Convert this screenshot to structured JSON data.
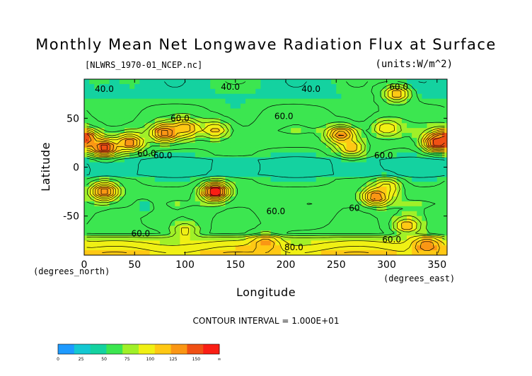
{
  "chart_data": {
    "type": "heatmap",
    "title": "Monthly Mean Net Longwave Radiation Flux at Surface",
    "file_label": "[NLWRS_1970-01_NCEP.nc]",
    "units_label": "(units:W/m^2)",
    "xlabel": "Longitude",
    "ylabel": "Latitude",
    "x_unit_label": "(degrees_east)",
    "y_unit_label": "(degrees_north)",
    "xlim": [
      0,
      360
    ],
    "ylim": [
      -90,
      90
    ],
    "x_ticks": [
      0,
      50,
      100,
      150,
      200,
      250,
      300,
      350
    ],
    "y_ticks": [
      -50,
      0,
      50
    ],
    "contour_interval_text": "CONTOUR INTERVAL = 1.000E+01",
    "contour_labels": [
      {
        "text": "40.0",
        "x": 20,
        "y": 80
      },
      {
        "text": "40.0",
        "x": 145,
        "y": 82
      },
      {
        "text": "40.0",
        "x": 225,
        "y": 80
      },
      {
        "text": "60.0",
        "x": 312,
        "y": 82
      },
      {
        "text": "60.0",
        "x": 95,
        "y": 50
      },
      {
        "text": "60.0",
        "x": 198,
        "y": 52
      },
      {
        "text": "60.0",
        "x": 62,
        "y": 14
      },
      {
        "text": "60.0",
        "x": 78,
        "y": 12
      },
      {
        "text": "60.0",
        "x": 297,
        "y": 12
      },
      {
        "text": "60.0",
        "x": 190,
        "y": -45
      },
      {
        "text": "60",
        "x": 268,
        "y": -42
      },
      {
        "text": "60.0",
        "x": 56,
        "y": -68
      },
      {
        "text": "60.0",
        "x": 305,
        "y": -74
      },
      {
        "text": "80.0",
        "x": 208,
        "y": -82
      }
    ],
    "colorbar": {
      "ticks": [
        "0",
        "25",
        "50",
        "75",
        "100",
        "125",
        "150",
        "∞"
      ],
      "colors": [
        "#1e9aff",
        "#14c8d2",
        "#14d2a0",
        "#3ce650",
        "#a0f028",
        "#f0f014",
        "#ffc814",
        "#fa9614",
        "#f05014",
        "#fa1e14"
      ]
    },
    "features": [
      {
        "lon": 0,
        "lat": 30,
        "value": 130
      },
      {
        "lon": 20,
        "lat": 20,
        "value": 140
      },
      {
        "lon": 45,
        "lat": 25,
        "value": 120
      },
      {
        "lon": 80,
        "lat": 35,
        "value": 130
      },
      {
        "lon": 100,
        "lat": 40,
        "value": 110
      },
      {
        "lon": 130,
        "lat": 38,
        "value": 95
      },
      {
        "lon": 255,
        "lat": 33,
        "value": 125
      },
      {
        "lon": 265,
        "lat": 20,
        "value": 100
      },
      {
        "lon": 300,
        "lat": 40,
        "value": 90
      },
      {
        "lon": 350,
        "lat": 25,
        "value": 140
      },
      {
        "lon": 20,
        "lat": -25,
        "value": 130
      },
      {
        "lon": 130,
        "lat": -25,
        "value": 150
      },
      {
        "lon": 290,
        "lat": -30,
        "value": 130
      },
      {
        "lon": 300,
        "lat": -20,
        "value": 95
      },
      {
        "lon": 320,
        "lat": -60,
        "value": 100
      },
      {
        "lon": 100,
        "lat": -65,
        "value": 85
      },
      {
        "lon": 180,
        "lat": -78,
        "value": 110
      },
      {
        "lon": 340,
        "lat": -80,
        "value": 120
      },
      {
        "lon": 150,
        "lat": 70,
        "value": 45
      },
      {
        "lon": 230,
        "lat": 80,
        "value": 40
      },
      {
        "lon": 310,
        "lat": 75,
        "value": 100
      },
      {
        "lon": 30,
        "lat": 80,
        "value": 40
      },
      {
        "lon": 180,
        "lat": 0,
        "value": 40
      },
      {
        "lon": 200,
        "lat": -40,
        "value": 50
      },
      {
        "lon": 60,
        "lat": -40,
        "value": 45
      }
    ]
  }
}
